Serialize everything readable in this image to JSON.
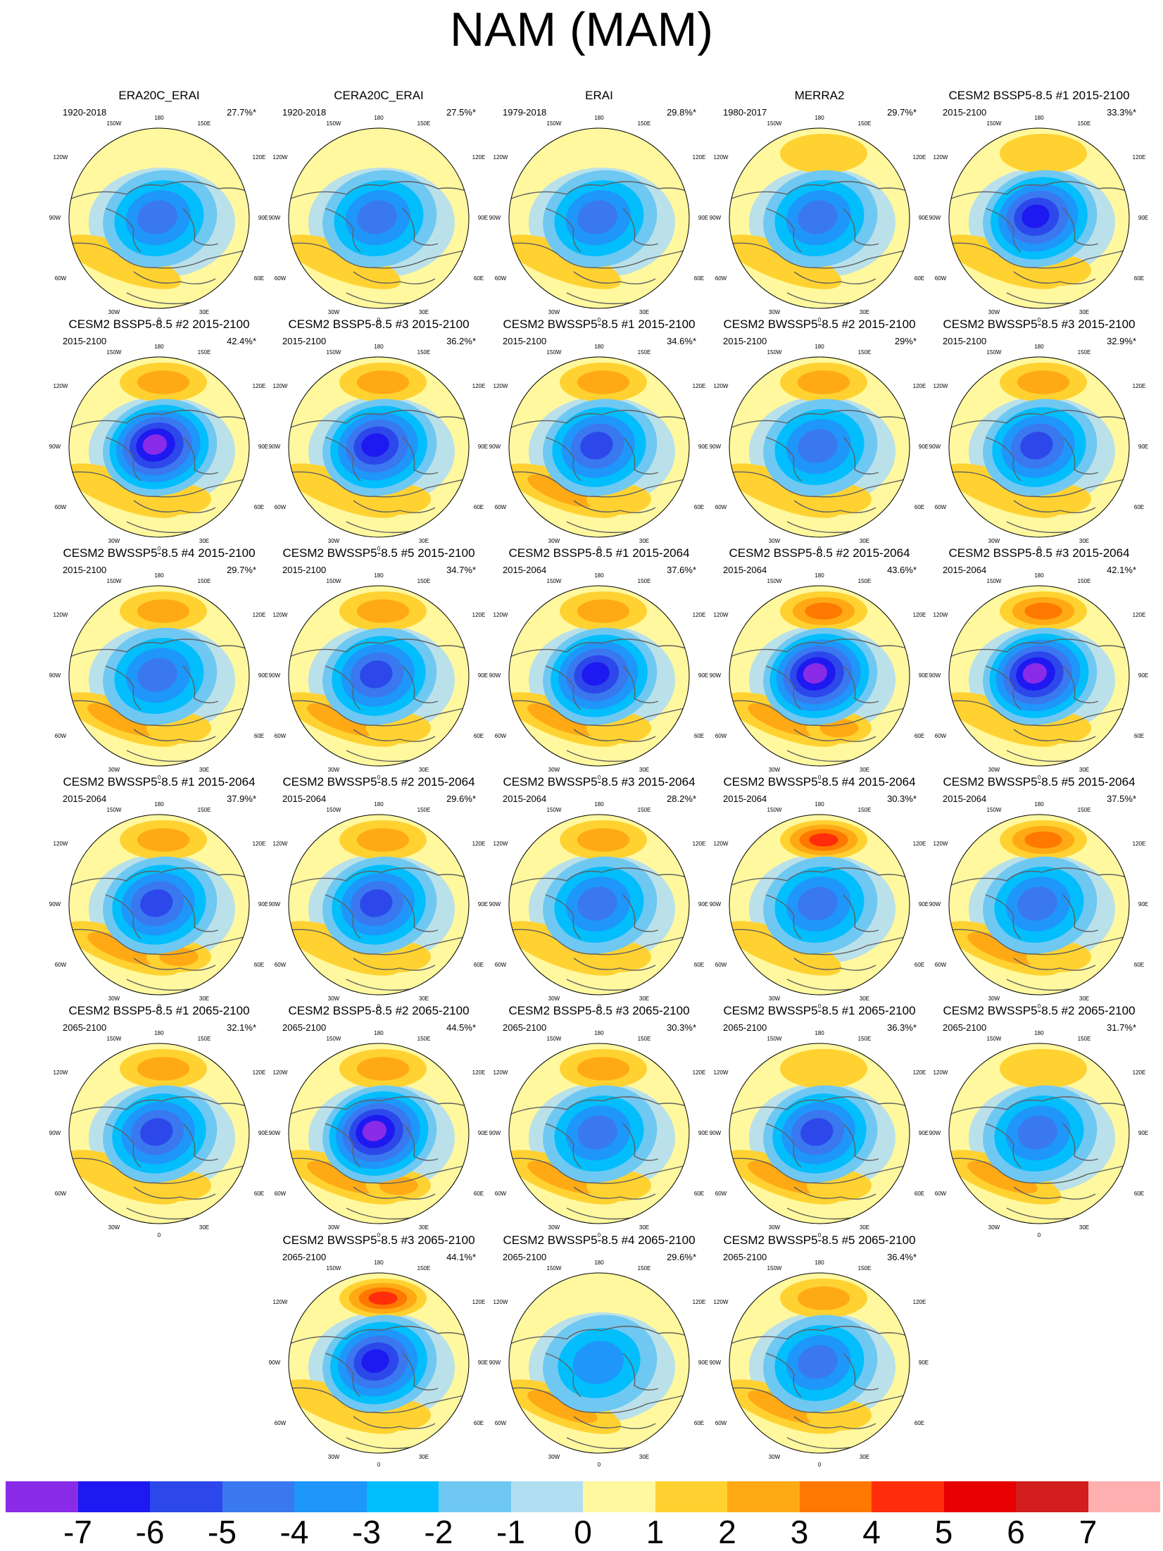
{
  "figure": {
    "title": "NAM (MAM)"
  },
  "chart_data": {
    "type": "map",
    "title": "NAM (MAM)",
    "projection": "north polar stereographic",
    "longitude_labels": [
      "180",
      "150W",
      "150E",
      "120W",
      "120E",
      "90W",
      "90E",
      "60W",
      "60E",
      "30W",
      "30E",
      "0"
    ],
    "panels": [
      {
        "title": "ERA20C_ERAI",
        "years": "1920-2018",
        "variance": "27.7%*",
        "pattern": {
          "center": -4.6,
          "pacific": 0.3,
          "atlantic": 1.4,
          "europe": 0.2
        }
      },
      {
        "title": "CERA20C_ERAI",
        "years": "1920-2018",
        "variance": "27.5%*",
        "pattern": {
          "center": -4.4,
          "pacific": 0.4,
          "atlantic": 1.4,
          "europe": 0.2
        }
      },
      {
        "title": "ERAI",
        "years": "1979-2018",
        "variance": "29.8%*",
        "pattern": {
          "center": -4.2,
          "pacific": 0.9,
          "atlantic": 1.6,
          "europe": 0.4
        }
      },
      {
        "title": "MERRA2",
        "years": "1980-2017",
        "variance": "29.7%*",
        "pattern": {
          "center": -4.2,
          "pacific": 1.2,
          "atlantic": 1.6,
          "europe": 0.5
        }
      },
      {
        "title": "CESM2 BSSP5-8.5 #1 2015-2100",
        "years": "2015-2100",
        "variance": "33.3%*",
        "pattern": {
          "center": -6.0,
          "pacific": 1.4,
          "atlantic": 1.3,
          "europe": 1.5
        }
      },
      {
        "title": "CESM2 BSSP5-8.5 #2 2015-2100",
        "years": "2015-2100",
        "variance": "42.4%*",
        "pattern": {
          "center": -7.0,
          "pacific": 2.8,
          "atlantic": 1.8,
          "europe": 1.8
        }
      },
      {
        "title": "CESM2 BSSP5-8.5 #3 2015-2100",
        "years": "2015-2100",
        "variance": "36.2%*",
        "pattern": {
          "center": -6.3,
          "pacific": 2.7,
          "atlantic": 1.8,
          "europe": 1.5
        }
      },
      {
        "title": "CESM2 BWSSP5-8.5 #1 2015-2100",
        "years": "2015-2100",
        "variance": "34.6%*",
        "pattern": {
          "center": -5.0,
          "pacific": 2.2,
          "atlantic": 2.0,
          "europe": 1.4
        }
      },
      {
        "title": "CESM2 BWSSP5-8.5 #2 2015-2100",
        "years": "2015-2100",
        "variance": "29%*",
        "pattern": {
          "center": -4.6,
          "pacific": 2.0,
          "atlantic": 1.8,
          "europe": 1.2
        }
      },
      {
        "title": "CESM2 BWSSP5-8.5 #3 2015-2100",
        "years": "2015-2100",
        "variance": "32.9%*",
        "pattern": {
          "center": -5.0,
          "pacific": 2.3,
          "atlantic": 1.5,
          "europe": 1.4
        }
      },
      {
        "title": "CESM2 BWSSP5-8.5 #4 2015-2100",
        "years": "2015-2100",
        "variance": "29.7%*",
        "pattern": {
          "center": -4.8,
          "pacific": 2.8,
          "atlantic": 2.0,
          "europe": 1.3
        }
      },
      {
        "title": "CESM2 BWSSP5-8.5 #5 2015-2100",
        "years": "2015-2100",
        "variance": "34.7%*",
        "pattern": {
          "center": -5.0,
          "pacific": 2.8,
          "atlantic": 2.1,
          "europe": 1.2
        }
      },
      {
        "title": "CESM2 BSSP5-8.5 #1 2015-2064",
        "years": "2015-2064",
        "variance": "37.6%*",
        "pattern": {
          "center": -6.5,
          "pacific": 2.3,
          "atlantic": 2.0,
          "europe": 1.6
        }
      },
      {
        "title": "CESM2 BSSP5-8.5 #2 2015-2064",
        "years": "2015-2064",
        "variance": "43.6%*",
        "pattern": {
          "center": -7.0,
          "pacific": 3.6,
          "atlantic": 2.0,
          "europe": 2.2
        }
      },
      {
        "title": "CESM2 BSSP5-8.5 #3 2015-2064",
        "years": "2015-2064",
        "variance": "42.1%*",
        "pattern": {
          "center": -7.0,
          "pacific": 3.0,
          "atlantic": 1.8,
          "europe": 1.6
        }
      },
      {
        "title": "CESM2 BWSSP5-8.5 #1 2015-2064",
        "years": "2015-2064",
        "variance": "37.9%*",
        "pattern": {
          "center": -5.6,
          "pacific": 2.3,
          "atlantic": 2.2,
          "europe": 2.2
        }
      },
      {
        "title": "CESM2 BWSSP5-8.5 #2 2015-2064",
        "years": "2015-2064",
        "variance": "29.6%*",
        "pattern": {
          "center": -5.0,
          "pacific": 2.7,
          "atlantic": 1.8,
          "europe": 1.2
        }
      },
      {
        "title": "CESM2 BWSSP5-8.5 #3 2015-2064",
        "years": "2015-2064",
        "variance": "28.2%*",
        "pattern": {
          "center": -4.4,
          "pacific": 2.5,
          "atlantic": 1.2,
          "europe": 1.0
        }
      },
      {
        "title": "CESM2 BWSSP5-8.5 #4 2015-2064",
        "years": "2015-2064",
        "variance": "30.3%*",
        "pattern": {
          "center": -4.2,
          "pacific": 4.2,
          "atlantic": 1.4,
          "europe": 0.8
        }
      },
      {
        "title": "CESM2 BWSSP5-8.5 #5 2015-2064",
        "years": "2015-2064",
        "variance": "37.5%*",
        "pattern": {
          "center": -4.8,
          "pacific": 3.6,
          "atlantic": 2.1,
          "europe": 1.0
        }
      },
      {
        "title": "CESM2 BSSP5-8.5 #1 2065-2100",
        "years": "2065-2100",
        "variance": "32.1%*",
        "pattern": {
          "center": -5.0,
          "pacific": 2.4,
          "atlantic": 1.4,
          "europe": 1.2
        }
      },
      {
        "title": "CESM2 BSSP5-8.5 #2 2065-2100",
        "years": "2065-2100",
        "variance": "44.5%*",
        "pattern": {
          "center": -7.0,
          "pacific": 2.4,
          "atlantic": 2.2,
          "europe": 2.0
        }
      },
      {
        "title": "CESM2 BSSP5-8.5 #3 2065-2100",
        "years": "2065-2100",
        "variance": "30.3%*",
        "pattern": {
          "center": -4.6,
          "pacific": 2.8,
          "atlantic": 2.0,
          "europe": 1.6
        }
      },
      {
        "title": "CESM2 BWSSP5-8.5 #1 2065-2100",
        "years": "2065-2100",
        "variance": "36.3%*",
        "pattern": {
          "center": -5.2,
          "pacific": 1.5,
          "atlantic": 2.0,
          "europe": 1.5
        }
      },
      {
        "title": "CESM2 BWSSP5-8.5 #2 2065-2100",
        "years": "2065-2100",
        "variance": "31.7%*",
        "pattern": {
          "center": -4.0,
          "pacific": 1.6,
          "atlantic": 2.0,
          "europe": 0.8
        }
      },
      {
        "title": "CESM2 BWSSP5-8.5 #3 2065-2100",
        "years": "2065-2100",
        "variance": "44.1%*",
        "pattern": {
          "center": -6.0,
          "pacific": 4.0,
          "atlantic": 1.5,
          "europe": 1.5
        }
      },
      {
        "title": "CESM2 BWSSP5-8.5 #4 2065-2100",
        "years": "2065-2100",
        "variance": "29.6%*",
        "pattern": {
          "center": -3.2,
          "pacific": 0.6,
          "atlantic": 2.2,
          "europe": 0.4
        }
      },
      {
        "title": "CESM2 BWSSP5-8.5 #5 2065-2100",
        "years": "2065-2100",
        "variance": "36.4%*",
        "pattern": {
          "center": -4.5,
          "pacific": 2.2,
          "atlantic": 2.8,
          "europe": 1.0
        }
      }
    ],
    "colorbar": {
      "labels": [
        "-7",
        "-6",
        "-5",
        "-4",
        "-3",
        "-2",
        "-1",
        "0",
        "1",
        "2",
        "3",
        "4",
        "5",
        "6",
        "7"
      ],
      "levels": [
        -7,
        -6,
        -5,
        -4,
        -3,
        -2,
        -1,
        0,
        1,
        2,
        3,
        4,
        5,
        6,
        7
      ],
      "colors": [
        "#8a2be8",
        "#1e19f0",
        "#2d48ea",
        "#3a78f0",
        "#1e96fa",
        "#02befc",
        "#6fc8f2",
        "#b2def2",
        "#fff89e",
        "#ffd232",
        "#ffaa14",
        "#ff7800",
        "#ff2d0a",
        "#e60000",
        "#d21e1e",
        "#ffafaf"
      ]
    }
  }
}
